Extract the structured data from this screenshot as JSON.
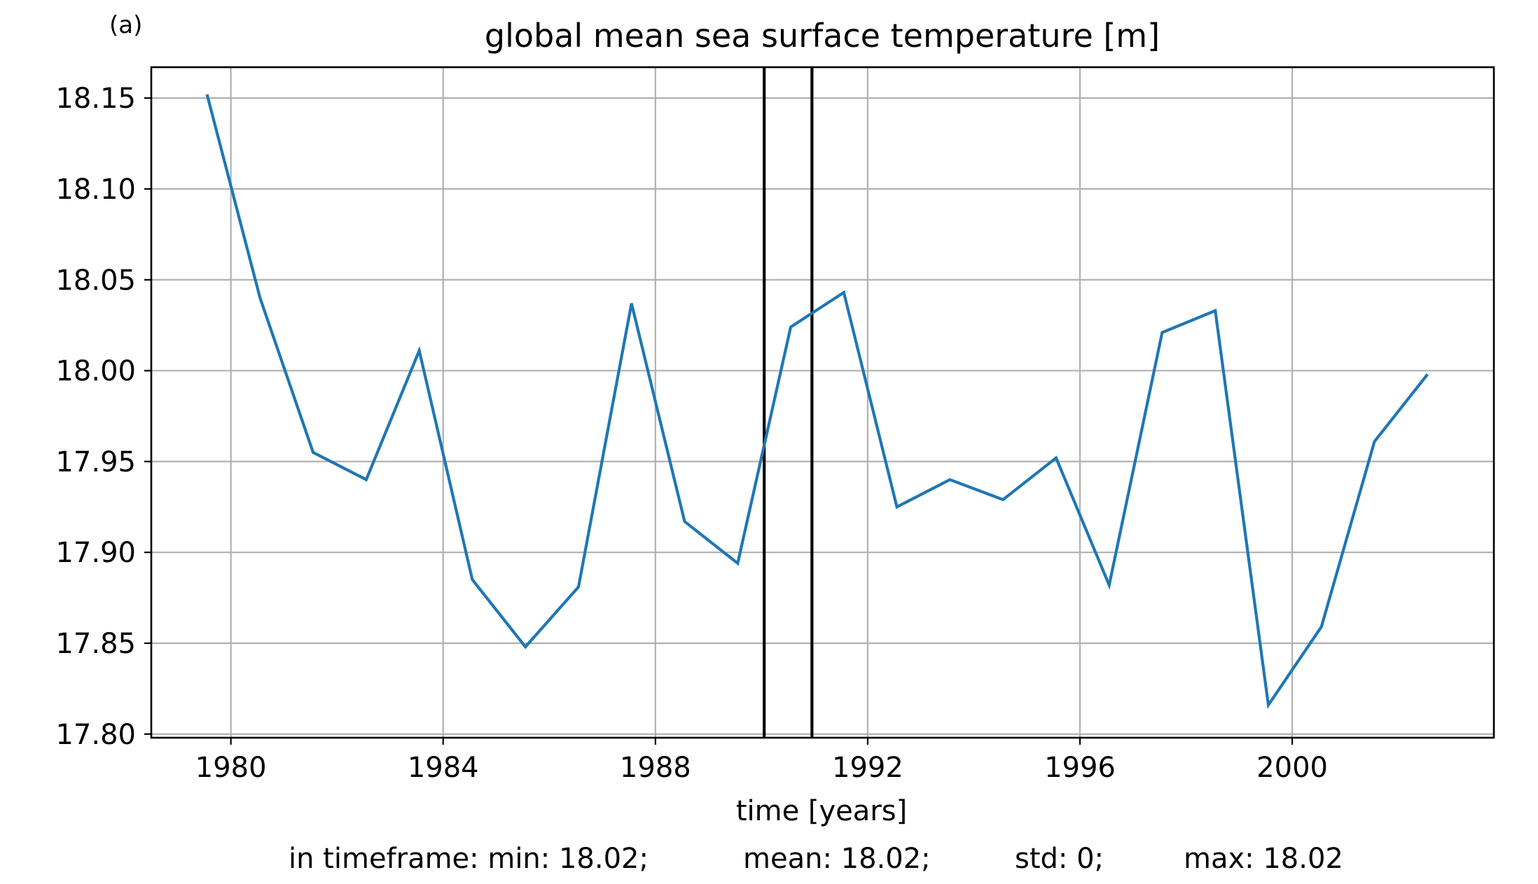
{
  "chart_data": {
    "type": "line",
    "panel_label": "(a)",
    "title": "global mean sea surface temperature [m]",
    "xlabel": "time [years]",
    "ylabel": "",
    "xlim": [
      1978.5,
      2003.8
    ],
    "ylim": [
      17.798,
      18.167
    ],
    "x_ticks": [
      1980,
      1984,
      1988,
      1992,
      1996,
      2000
    ],
    "y_ticks": [
      17.8,
      17.85,
      17.9,
      17.95,
      18.0,
      18.05,
      18.1,
      18.15
    ],
    "y_tick_labels": [
      "17.80",
      "17.85",
      "17.90",
      "17.95",
      "18.00",
      "18.05",
      "18.10",
      "18.15"
    ],
    "grid": true,
    "series_color": "#1f77b4",
    "series": [
      {
        "x": [
          1979.55,
          1980.55,
          1981.55,
          1982.55,
          1983.55,
          1984.55,
          1985.55,
          1986.55,
          1987.55,
          1988.55,
          1989.55,
          1990.55,
          1991.55,
          1992.55,
          1993.55,
          1994.55,
          1995.55,
          1996.55,
          1997.55,
          1998.55,
          1999.55,
          2000.55,
          2001.55,
          2002.55
        ],
        "values": [
          18.152,
          18.04,
          17.955,
          17.94,
          18.011,
          17.885,
          17.848,
          17.881,
          18.037,
          17.917,
          17.894,
          18.024,
          18.043,
          17.925,
          17.94,
          17.929,
          17.952,
          17.882,
          18.021,
          18.033,
          17.816,
          17.859,
          17.961,
          17.998
        ]
      }
    ],
    "vertical_lines": [
      1990.05,
      1990.95
    ],
    "vertical_line_color": "#000000"
  },
  "stats": {
    "min": "in timeframe: min: 18.02;",
    "mean": "mean: 18.02;",
    "std": "std: 0;",
    "max": "max: 18.02"
  }
}
